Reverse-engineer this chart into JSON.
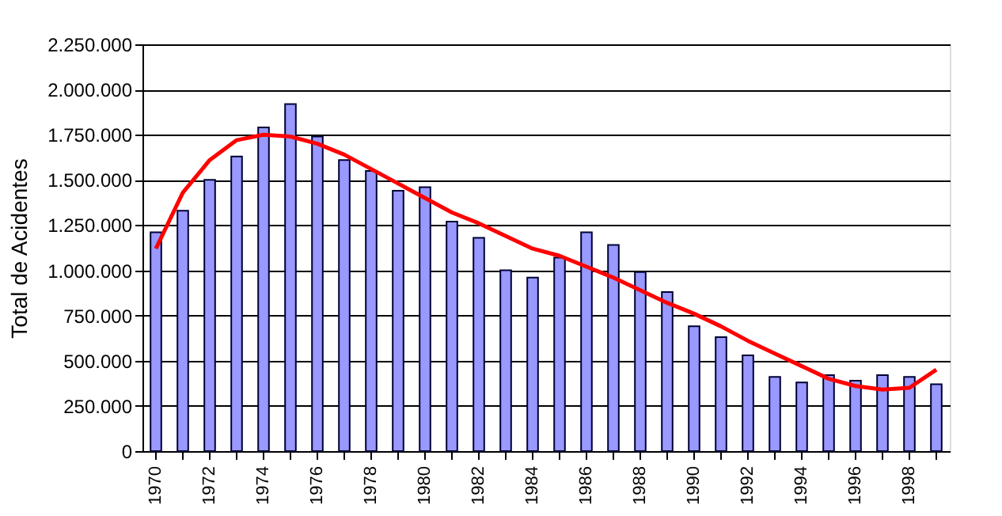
{
  "chart_data": {
    "type": "bar",
    "ylabel": "Total de Acidentes",
    "categories": [
      "1970",
      null,
      "1972",
      null,
      "1974",
      null,
      "1976",
      null,
      "1978",
      null,
      "1980",
      null,
      "1982",
      null,
      "1984",
      null,
      "1986",
      null,
      "1988",
      null,
      "1990",
      null,
      "1992",
      null,
      "1994",
      null,
      "1996",
      null,
      "1998",
      null
    ],
    "series": [
      {
        "color": "#9999ff",
        "values": [
          1210000,
          1330000,
          1500000,
          1630000,
          1790000,
          1920000,
          1740000,
          1610000,
          1550000,
          1440000,
          1460000,
          1270000,
          1180000,
          1000000,
          960000,
          1070000,
          1210000,
          1140000,
          990000,
          880000,
          690000,
          630000,
          530000,
          410000,
          380000,
          420000,
          390000,
          420000,
          410000,
          370000
        ]
      },
      {
        "type": "line",
        "color": "#ff0000",
        "values": [
          1120000,
          1430000,
          1610000,
          1720000,
          1750000,
          1740000,
          1700000,
          1640000,
          1560000,
          1480000,
          1400000,
          1320000,
          1260000,
          1190000,
          1120000,
          1080000,
          1020000,
          960000,
          890000,
          820000,
          760000,
          690000,
          610000,
          540000,
          470000,
          400000,
          360000,
          340000,
          350000,
          450000
        ]
      }
    ],
    "ylim": [
      0,
      2250000
    ],
    "yticks": [
      {
        "value": 0,
        "label": "0"
      },
      {
        "value": 250000,
        "label": "250.000"
      },
      {
        "value": 500000,
        "label": "500.000"
      },
      {
        "value": 750000,
        "label": "750.000"
      },
      {
        "value": 1000000,
        "label": "1.000.000"
      },
      {
        "value": 1250000,
        "label": "1.250.000"
      },
      {
        "value": 1500000,
        "label": "1.500.000"
      },
      {
        "value": 1750000,
        "label": "1.750.000"
      },
      {
        "value": 2000000,
        "label": "2.000.000"
      },
      {
        "value": 2250000,
        "label": "2.250.000"
      }
    ],
    "grid": "y",
    "line_style": "solid"
  }
}
